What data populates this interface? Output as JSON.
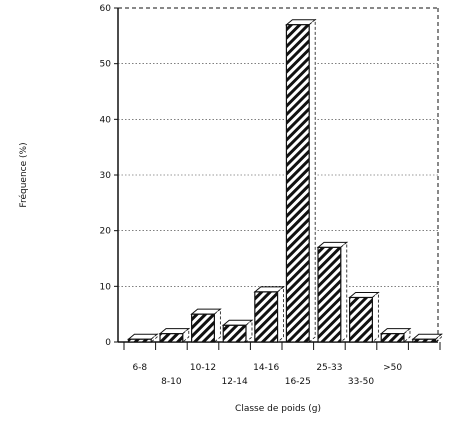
{
  "chart_data": {
    "type": "bar",
    "xlabel": "Classe de poids (g)",
    "ylabel": "Fréquence (%)",
    "ylim": [
      0,
      60
    ],
    "yticks": [
      0,
      10,
      20,
      30,
      40,
      50,
      60
    ],
    "grid": true,
    "categories": [
      "6-8",
      "8-10",
      "10-12",
      "12-14",
      "14-16",
      "16-25",
      "25-33",
      "33-50",
      ">50",
      ""
    ],
    "values": [
      0.5,
      1.5,
      5,
      3,
      9,
      57,
      17,
      8,
      1.5,
      0.5
    ],
    "fill_pattern": "diagonal-hatch"
  }
}
